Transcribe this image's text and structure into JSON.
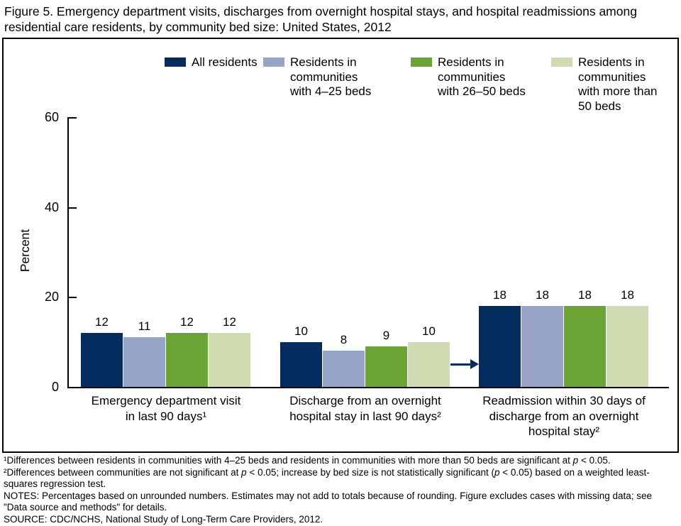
{
  "title": "Figure 5. Emergency department visits, discharges from overnight hospital stays, and hospital readmissions among residential care residents, by community bed size: United States, 2012",
  "chart_data": {
    "type": "bar",
    "title": "Figure 5. Emergency department visits, discharges from overnight hospital stays, and hospital readmissions among residential care residents, by community bed size: United States, 2012",
    "xlabel": "",
    "ylabel": "Percent",
    "ylim": [
      0,
      60
    ],
    "yticks": [
      0,
      20,
      40,
      60
    ],
    "grid": false,
    "legend_position": "top",
    "categories": [
      "Emergency department visit\nin last 90 days¹",
      "Discharge from an overnight\nhospital stay in last 90 days²",
      "Readmission within 30 days of\ndischarge from an overnight\nhospital stay²"
    ],
    "series": [
      {
        "name": "All residents",
        "legend_label": "All residents",
        "color": "#022d5e",
        "values": [
          12,
          10,
          18
        ]
      },
      {
        "name": "Residents in communities with 4–25 beds",
        "legend_label": "Residents in\ncommunities\nwith 4–25 beds",
        "color": "#97a4c8",
        "values": [
          11,
          8,
          18
        ]
      },
      {
        "name": "Residents in communities with 26–50 beds",
        "legend_label": "Residents in\ncommunities\nwith 26–50 beds",
        "color": "#6ba334",
        "values": [
          12,
          9,
          18
        ]
      },
      {
        "name": "Residents in communities with more than 50 beds",
        "legend_label": "Residents in\ncommunities\nwith more than\n50 beds",
        "color": "#cfdcb1",
        "values": [
          12,
          10,
          18
        ]
      }
    ],
    "annotation_arrow": {
      "color": "#022d5e",
      "description": "arrow pointing from discharge group to readmission group"
    }
  },
  "footnotes": [
    [
      {
        "t": "¹Differences between residents in communities with 4–25 beds and residents in communities with more than 50 beds are significant at "
      },
      {
        "t": "p",
        "i": true
      },
      {
        "t": " < 0.05."
      }
    ],
    [
      {
        "t": "²Differences between communities are not significant at "
      },
      {
        "t": "p",
        "i": true
      },
      {
        "t": " < 0.05; increase by bed size is not statistically significant ("
      },
      {
        "t": "p",
        "i": true
      },
      {
        "t": " < 0.05) based on a weighted least-squares regression test."
      }
    ],
    [
      {
        "t": "NOTES: Percentages based on unrounded numbers. Estimates may not add to totals because of rounding. Figure excludes cases with missing data; see \"Data source and methods\" for details."
      }
    ],
    [
      {
        "t": "SOURCE: CDC/NCHS, National Study of Long-Term Care Providers, 2012."
      }
    ]
  ]
}
